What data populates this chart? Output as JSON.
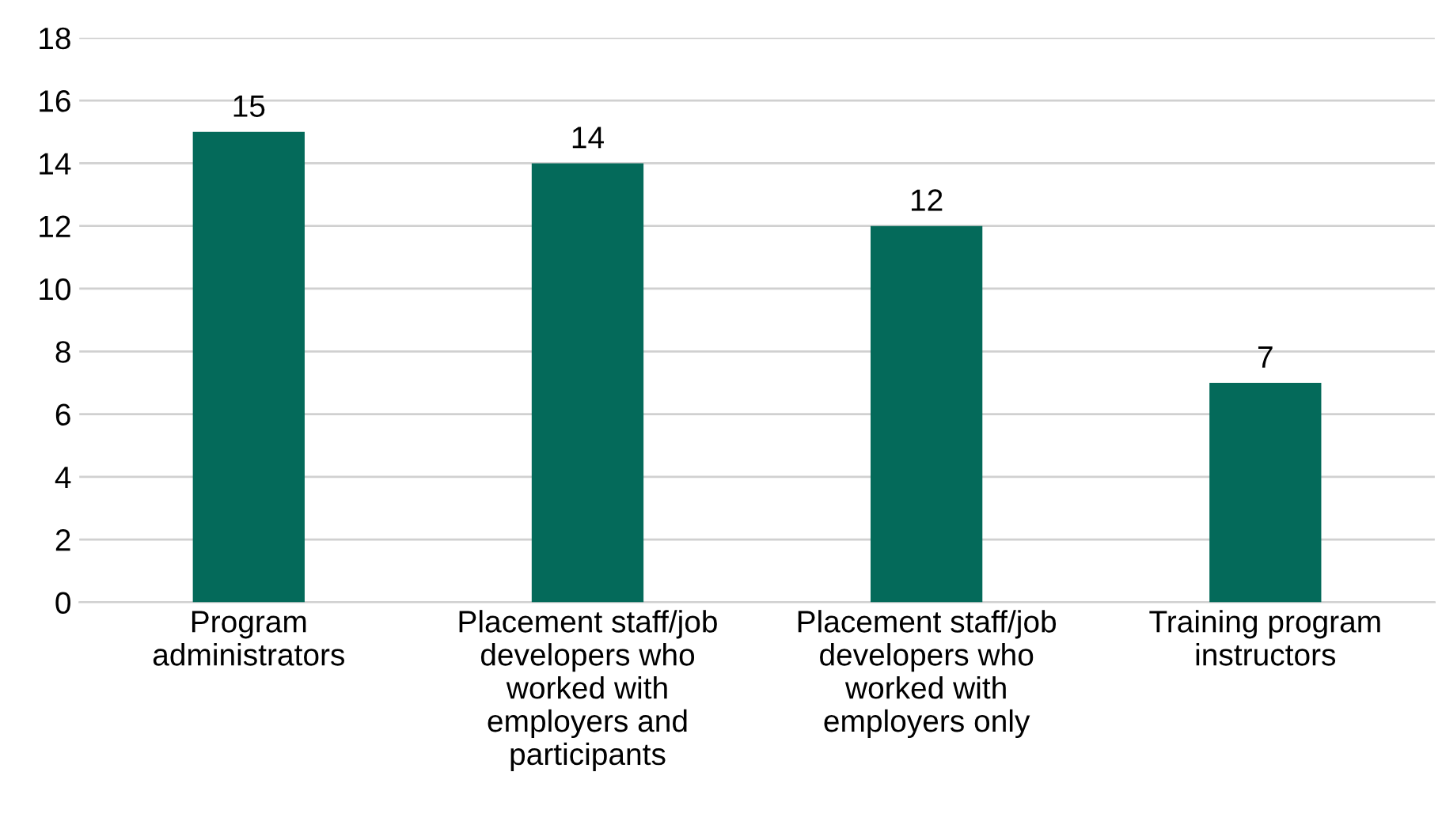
{
  "chart_data": {
    "type": "bar",
    "categories": [
      "Program\nadministrators",
      "Placement staff/job\ndevelopers who\nworked with\nemployers and\nparticipants",
      "Placement staff/job\ndevelopers who\nworked with\nemployers only",
      "Training program\ninstructors"
    ],
    "values": [
      15,
      14,
      12,
      7
    ],
    "color": "#046a5a",
    "data_labels": true,
    "ylim": [
      0,
      18
    ],
    "yticks": [
      0,
      2,
      4,
      6,
      8,
      10,
      12,
      14,
      16,
      18
    ],
    "grid": "y",
    "legend": false
  }
}
